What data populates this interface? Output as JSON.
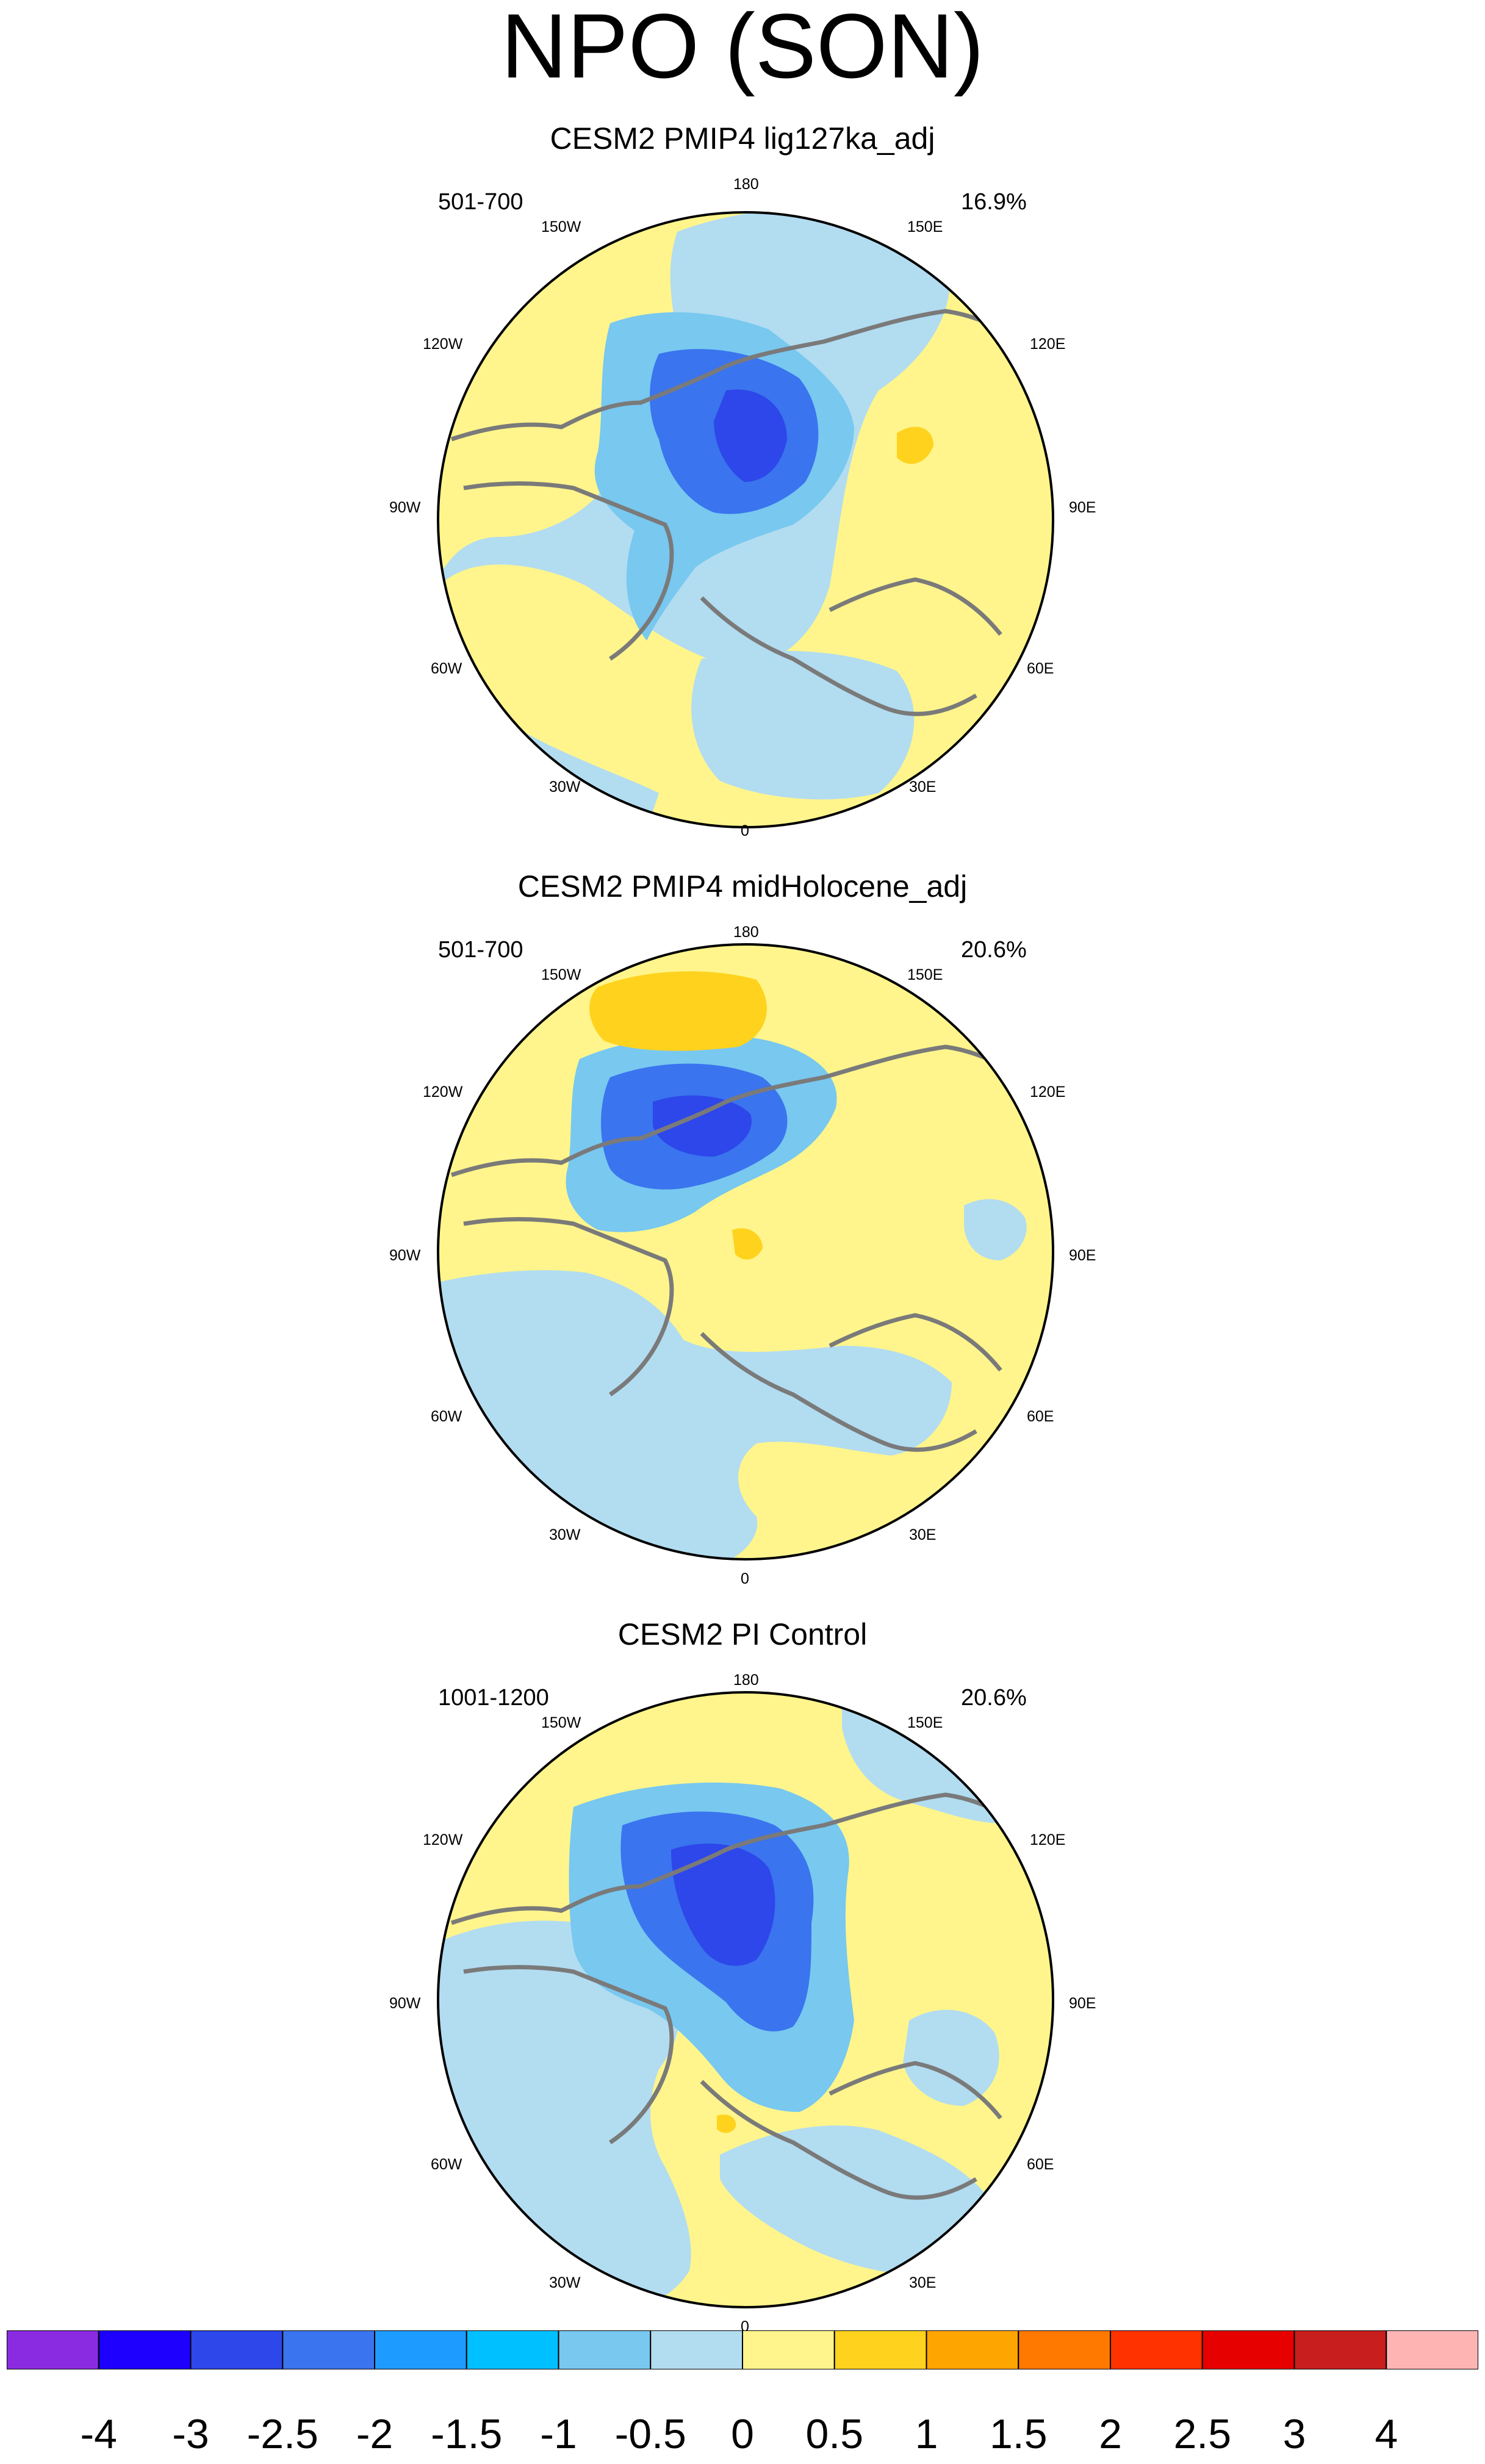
{
  "title": "NPO (SON)",
  "longitude_labels": [
    "180",
    "150E",
    "120E",
    "90E",
    "60E",
    "30E",
    "0",
    "30W",
    "60W",
    "90W",
    "120W",
    "150W"
  ],
  "panels": [
    {
      "title": "CESM2 PMIP4 lig127ka_adj",
      "years": "501-700",
      "variance": "16.9%"
    },
    {
      "title": "CESM2 PMIP4 midHolocene_adj",
      "years": "501-700",
      "variance": "20.6%"
    },
    {
      "title": "CESM2 PI Control",
      "years": "1001-1200",
      "variance": "20.6%"
    }
  ],
  "colorbar": {
    "labels": [
      "-4",
      "-3",
      "-2.5",
      "-2",
      "-1.5",
      "-1",
      "-0.5",
      "0",
      "0.5",
      "1",
      "1.5",
      "2",
      "2.5",
      "3",
      "4"
    ],
    "colors": [
      "#8a2be2",
      "#1e00ff",
      "#2d47ea",
      "#3a74ee",
      "#1e9bff",
      "#00c0ff",
      "#78c8f0",
      "#b2dcf0",
      "#fff58c",
      "#ffd21e",
      "#ffa500",
      "#ff7800",
      "#ff3200",
      "#e60000",
      "#c81e1e",
      "#ffb4b4"
    ]
  },
  "colors": {
    "ocean_neutral": "#b2dcf0",
    "land_positive": "#fff58c",
    "coast": "#7a7a7a"
  }
}
